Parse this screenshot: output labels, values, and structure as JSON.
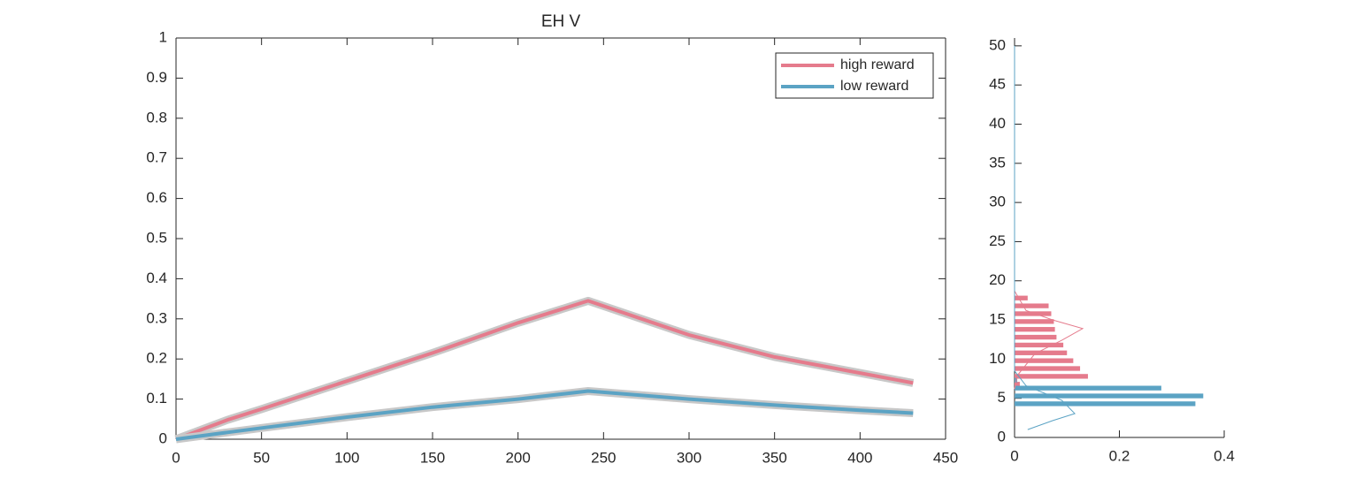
{
  "chart_data": [
    {
      "type": "line",
      "title": "EH  V",
      "x": [
        0,
        30,
        50,
        100,
        150,
        200,
        241,
        300,
        350,
        400,
        431
      ],
      "series": [
        {
          "name": "high reward",
          "color": "#e57b8c",
          "values": [
            0,
            0.048,
            0.075,
            0.145,
            0.215,
            0.29,
            0.345,
            0.26,
            0.205,
            0.165,
            0.14
          ]
        },
        {
          "name": "low reward",
          "color": "#5ba3c4",
          "values": [
            0,
            0.017,
            0.028,
            0.055,
            0.08,
            0.1,
            0.12,
            0.1,
            0.085,
            0.072,
            0.065
          ]
        }
      ],
      "band_color": "#c8c8c8",
      "xlim": [
        0,
        450
      ],
      "xticks": [
        0,
        50,
        100,
        150,
        200,
        250,
        300,
        350,
        400,
        450
      ],
      "ylim": [
        0,
        1
      ],
      "yticks": [
        0,
        0.1,
        0.2,
        0.3,
        0.4,
        0.5,
        0.6,
        0.7,
        0.8,
        0.9,
        1
      ],
      "legend": "northeast",
      "box": true
    },
    {
      "type": "histogram",
      "orientation": "horizontal",
      "series": [
        {
          "color": "#e57b8c",
          "bins": [
            6.3,
            7.3,
            8.3,
            9.3,
            10.3,
            11.3,
            12.3,
            13.3,
            14.3,
            15.3,
            16.3,
            17.3,
            18.3
          ],
          "values": [
            0.01,
            0.14,
            0.125,
            0.112,
            0.1,
            0.093,
            0.08,
            0.077,
            0.075,
            0.07,
            0.065,
            0.025
          ]
        },
        {
          "color": "#5ba3c4",
          "bins": [
            3.8,
            4.8,
            5.8,
            6.8,
            7.8
          ],
          "values": [
            0.345,
            0.36,
            0.28,
            0.005
          ]
        }
      ],
      "density": [
        {
          "color": "#e57b8c",
          "x": [
            0,
            0.022,
            0.073,
            0.13,
            0.09,
            0.039,
            0.005,
            0
          ],
          "y": [
            18.7,
            16.2,
            15,
            13.9,
            12.4,
            10.7,
            7.9,
            6.2
          ]
        },
        {
          "color": "#5ba3c4",
          "x": [
            0,
            0,
            0.022,
            0.09,
            0.115,
            0.073,
            0.025
          ],
          "y": [
            50,
            8.5,
            6.6,
            4.75,
            3.05,
            2.15,
            1
          ]
        }
      ],
      "xlim": [
        0,
        0.4
      ],
      "xticks": [
        0,
        0.2,
        0.4
      ],
      "ylim": [
        0,
        51
      ],
      "yticks": [
        0,
        5,
        10,
        15,
        20,
        25,
        30,
        35,
        40,
        45,
        50
      ],
      "box": false
    }
  ]
}
